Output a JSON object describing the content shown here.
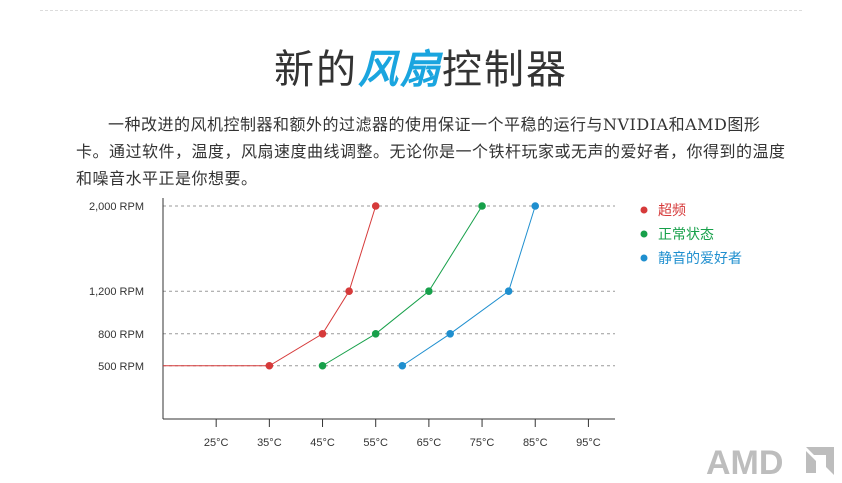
{
  "page": {
    "title_pre": "新的",
    "title_highlight": "风扇",
    "title_post": "控制器",
    "intro": "一种改进的风机控制器和额外的过滤器的使用保证一个平稳的运行与NVIDIA和AMD图形卡。通过软件，温度，风扇速度曲线调整。无论你是一个铁杆玩家或无声的爱好者，你得到的温度和噪音水平正是你想要。",
    "logo_text": "AMD",
    "colors": {
      "title": "#333333",
      "highlight": "#1aa5df"
    }
  },
  "chart_data": {
    "type": "line",
    "title": "",
    "xlabel": "",
    "ylabel": "",
    "x_ticks": [
      25,
      35,
      45,
      55,
      65,
      75,
      85,
      95
    ],
    "x_tick_labels": [
      "25°C",
      "35°C",
      "45°C",
      "55°C",
      "65°C",
      "75°C",
      "85°C",
      "95°C"
    ],
    "xlim": [
      15,
      100
    ],
    "y_ticks": [
      500,
      800,
      1200,
      2000
    ],
    "y_tick_labels": [
      "500 RPM",
      "800 RPM",
      "1,200 RPM",
      "2,000 RPM"
    ],
    "ylim": [
      0,
      2000
    ],
    "grid": "horizontal dashed at y ticks",
    "legend_position": "top-right",
    "series": [
      {
        "name": "超频",
        "color": "#d63a3a",
        "x": [
          15,
          35,
          45,
          50,
          55
        ],
        "y": [
          500,
          500,
          800,
          1200,
          2000
        ],
        "markers": [
          false,
          true,
          true,
          true,
          true
        ]
      },
      {
        "name": "正常状态",
        "color": "#17a04a",
        "x": [
          45,
          55,
          65,
          75
        ],
        "y": [
          500,
          800,
          1200,
          2000
        ],
        "markers": [
          true,
          true,
          true,
          true
        ]
      },
      {
        "name": "静音的爱好者",
        "color": "#1f8fcf",
        "x": [
          60,
          69,
          80,
          85
        ],
        "y": [
          500,
          800,
          1200,
          2000
        ],
        "markers": [
          true,
          true,
          true,
          true
        ]
      }
    ]
  }
}
